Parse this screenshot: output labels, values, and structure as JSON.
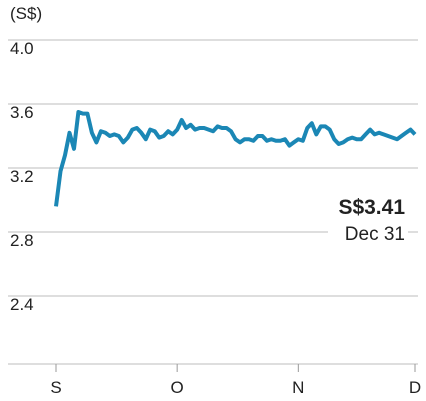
{
  "chart_data": {
    "type": "line",
    "y_axis_label": "(S$)",
    "categories": [
      "S",
      null,
      null,
      null,
      null,
      null,
      null,
      null,
      null,
      null,
      null,
      null,
      null,
      null,
      null,
      null,
      null,
      null,
      null,
      null,
      null,
      null,
      null,
      null,
      null,
      null,
      null,
      "O",
      null,
      null,
      null,
      null,
      null,
      null,
      null,
      null,
      null,
      null,
      null,
      null,
      null,
      null,
      null,
      null,
      null,
      null,
      null,
      null,
      null,
      null,
      null,
      null,
      null,
      null,
      "N",
      null,
      null,
      null,
      null,
      null,
      null,
      null,
      null,
      null,
      null,
      null,
      null,
      null,
      null,
      null,
      null,
      null,
      null,
      null,
      null,
      null,
      null,
      null,
      null,
      null,
      "D"
    ],
    "series": [
      {
        "name": null,
        "color": "#1b87b5",
        "values": [
          2.96,
          3.18,
          3.28,
          3.42,
          3.32,
          3.55,
          3.54,
          3.54,
          3.42,
          3.36,
          3.43,
          3.42,
          3.4,
          3.41,
          3.4,
          3.36,
          3.39,
          3.44,
          3.45,
          3.42,
          3.38,
          3.44,
          3.43,
          3.39,
          3.4,
          3.43,
          3.41,
          3.44,
          3.5,
          3.45,
          3.47,
          3.44,
          3.45,
          3.45,
          3.44,
          3.43,
          3.46,
          3.45,
          3.45,
          3.43,
          3.38,
          3.36,
          3.38,
          3.38,
          3.37,
          3.4,
          3.4,
          3.37,
          3.38,
          3.37,
          3.37,
          3.38,
          3.34,
          3.36,
          3.38,
          3.37,
          3.45,
          3.48,
          3.41,
          3.46,
          3.46,
          3.44,
          3.38,
          3.35,
          3.36,
          3.38,
          3.39,
          3.38,
          3.38,
          3.41,
          3.44,
          3.41,
          3.42,
          3.41,
          3.4,
          3.39,
          3.38,
          3.4,
          3.42,
          3.44,
          3.41
        ]
      }
    ],
    "ylim": [
      2,
      4
    ],
    "yticks": [
      {
        "value": 4,
        "label": "4.0"
      },
      3.6,
      3.2,
      2.8,
      2.4
    ],
    "grid": true,
    "annotations": [
      {
        "label": "S$3.41"
      },
      {
        "label": "Dec 31"
      }
    ]
  }
}
